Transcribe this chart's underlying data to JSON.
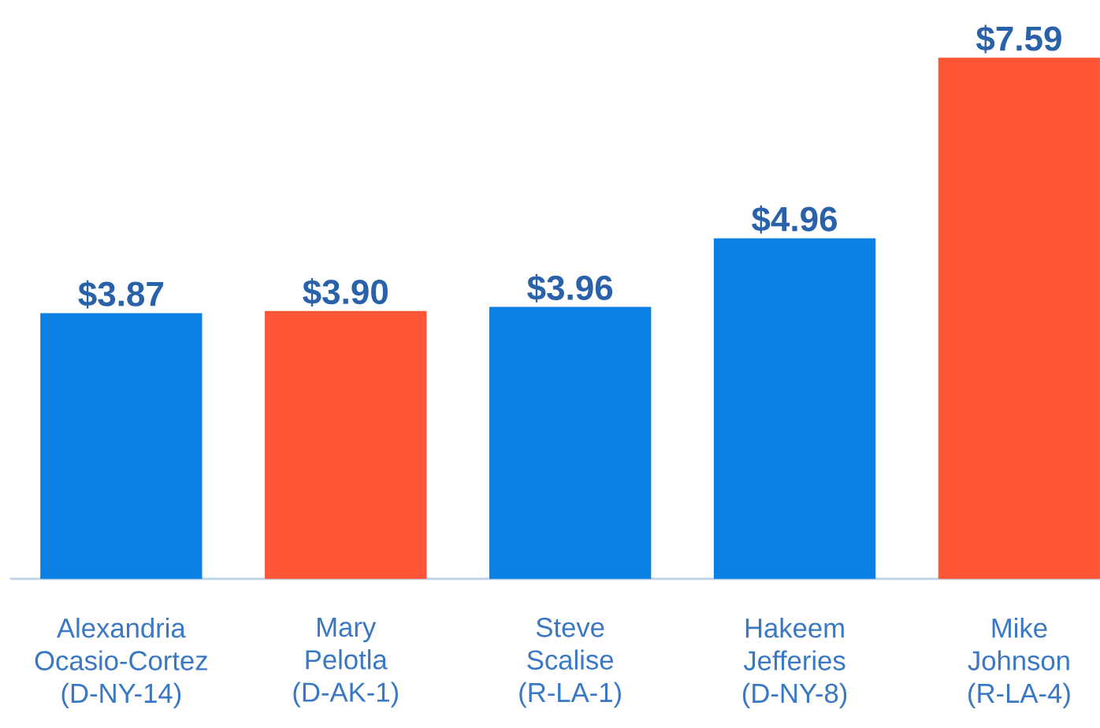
{
  "chart_data": {
    "type": "bar",
    "categories": [
      "Alexandria\nOcasio-Cortez\n(D-NY-14)",
      "Mary\nPelotla\n(D-AK-1)",
      "Steve\nScalise\n(R-LA-1)",
      "Hakeem\nJefferies\n(D-NY-8)",
      "Mike\nJohnson\n(R-LA-4)"
    ],
    "values": [
      3.87,
      3.9,
      3.96,
      4.96,
      7.59
    ],
    "value_labels": [
      "$3.87",
      "$3.90",
      "$3.96",
      "$4.96",
      "$7.59"
    ],
    "colors": [
      "#0a7fe4",
      "#ff5637",
      "#0a7fe4",
      "#0a7fe4",
      "#ff5637"
    ]
  }
}
